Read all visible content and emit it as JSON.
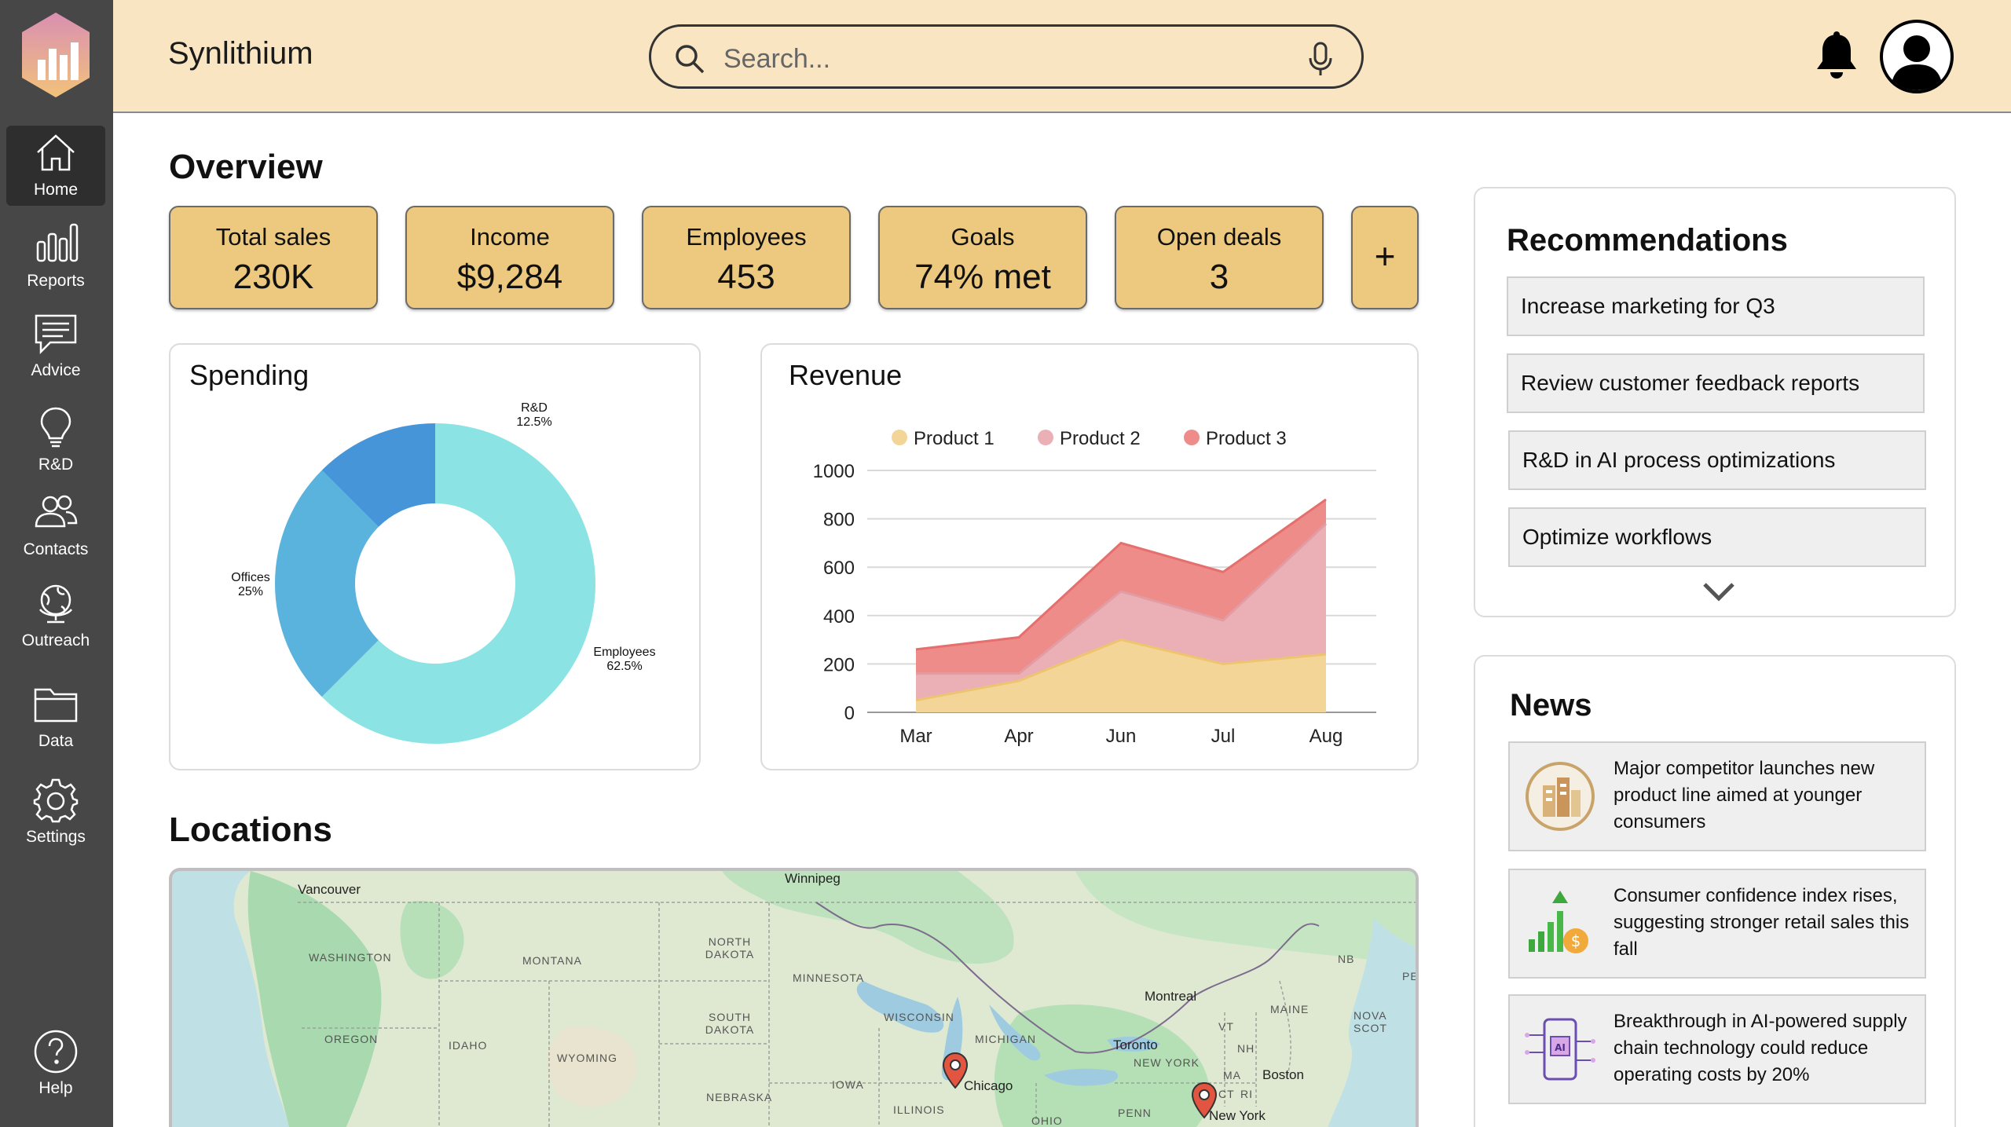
{
  "app": {
    "title": "Synlithium"
  },
  "search": {
    "placeholder": "Search..."
  },
  "sidebar": {
    "items": [
      {
        "label": "Home",
        "icon": "home-icon"
      },
      {
        "label": "Reports",
        "icon": "bar-chart-icon"
      },
      {
        "label": "Advice",
        "icon": "message-icon"
      },
      {
        "label": "R&D",
        "icon": "lightbulb-icon"
      },
      {
        "label": "Contacts",
        "icon": "users-icon"
      },
      {
        "label": "Outreach",
        "icon": "globe-icon"
      },
      {
        "label": "Data",
        "icon": "folder-icon"
      },
      {
        "label": "Settings",
        "icon": "gear-icon"
      },
      {
        "label": "Help",
        "icon": "help-icon"
      }
    ]
  },
  "overview": {
    "title": "Overview",
    "stats": [
      {
        "title": "Total sales",
        "value": "230K"
      },
      {
        "title": "Income",
        "value": "$9,284"
      },
      {
        "title": "Employees",
        "value": "453"
      },
      {
        "title": "Goals",
        "value": "74% met"
      },
      {
        "title": "Open deals",
        "value": "3"
      }
    ],
    "add_label": "+"
  },
  "spending": {
    "title": "Spending",
    "chart_data": {
      "type": "pie",
      "categories": [
        "Employees",
        "Offices",
        "R&D"
      ],
      "values": [
        62.5,
        25,
        12.5
      ],
      "labels": [
        "62.5%",
        "25%",
        "12.5%"
      ],
      "colors": [
        "#8be3e4",
        "#5ab3dc",
        "#4695d9"
      ]
    }
  },
  "revenue": {
    "title": "Revenue",
    "chart_data": {
      "type": "area",
      "categories": [
        "Mar",
        "Apr",
        "Jun",
        "Jul",
        "Aug"
      ],
      "ylim": [
        0,
        1000
      ],
      "yticks": [
        "0",
        "200",
        "400",
        "600",
        "800",
        "1000"
      ],
      "series": [
        {
          "name": "Product 1",
          "values": [
            50,
            130,
            300,
            200,
            240
          ],
          "color": "#f2d597"
        },
        {
          "name": "Product 2",
          "values": [
            160,
            160,
            500,
            380,
            780
          ],
          "color": "#ebb0b5"
        },
        {
          "name": "Product 3",
          "values": [
            260,
            310,
            700,
            580,
            880
          ],
          "color": "#ee8c8a"
        }
      ]
    }
  },
  "locations": {
    "title": "Locations",
    "cities": [
      "Vancouver",
      "Winnipeg",
      "Montreal",
      "Toronto",
      "Boston",
      "Chicago",
      "New York"
    ],
    "regions": [
      "WASHINGTON",
      "MONTANA",
      "NORTH DAKOTA",
      "MINNESOTA",
      "SOUTH DAKOTA",
      "OREGON",
      "IDAHO",
      "WYOMING",
      "NEBRASKA",
      "IOWA",
      "WISCONSIN",
      "MICHIGAN",
      "ILLINOIS",
      "OHIO",
      "PENN",
      "NEW YORK",
      "MAINE",
      "VT",
      "NH",
      "MA",
      "CT",
      "RI",
      "NB",
      "PE",
      "NOVA SCOT"
    ]
  },
  "recommendations": {
    "title": "Recommendations",
    "items": [
      "Increase marketing for Q3",
      "Review customer feedback reports",
      "R&D in AI process optimizations",
      "Optimize workflows"
    ]
  },
  "news": {
    "title": "News",
    "items": [
      {
        "text": "Major competitor launches new product line aimed at younger consumers",
        "icon": "building-icon"
      },
      {
        "text": "Consumer confidence index rises, suggesting stronger retail sales this fall",
        "icon": "growth-chart-icon"
      },
      {
        "text": "Breakthrough in AI-powered supply chain technology could reduce operating costs by 20%",
        "icon": "ai-chip-icon"
      }
    ]
  }
}
